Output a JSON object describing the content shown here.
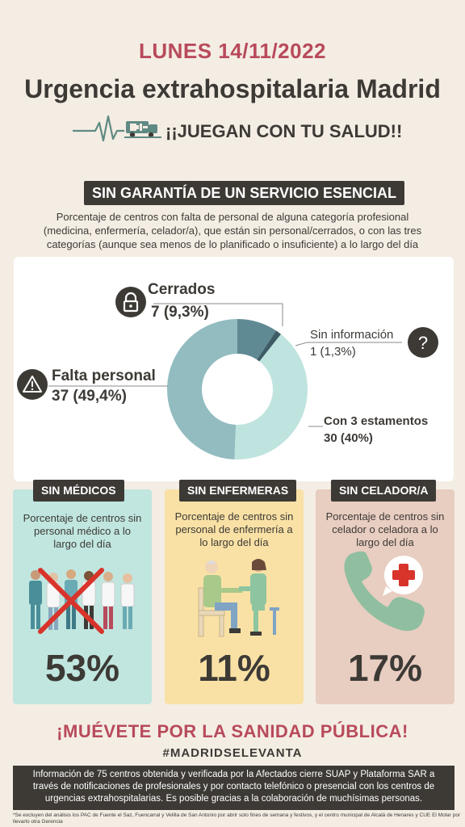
{
  "header": {
    "date": "LUNES 14/11/2022",
    "title": "Urgencia extrahospitalaria Madrid",
    "slogan": "¡¡JUEGAN CON TU SALUD!!"
  },
  "section": {
    "tag": "SIN GARANTÍA DE UN SERVICIO  ESENCIAL",
    "description": "Porcentaje de centros con falta de personal de alguna categoría profesional (medicina, enfermería, celador/a), que están sin personal/cerrados, o con las tres categorías (aunque sea menos de lo planificado o insuficiente) a lo largo del día"
  },
  "chart_data": {
    "type": "pie",
    "donut": true,
    "slices": [
      {
        "name": "Cerrados",
        "value": 7,
        "label": "7 (9,3%)",
        "percent": 9.3,
        "color": "#5f8a94"
      },
      {
        "name": "Sin información",
        "value": 1,
        "label": "1 (1,3%)",
        "percent": 1.3,
        "color": "#3d5c66"
      },
      {
        "name": "Con 3 estamentos",
        "value": 30,
        "label": "30 (40%)",
        "percent": 40,
        "color": "#bfe4df"
      },
      {
        "name": "Falta personal",
        "value": 37,
        "label": "37 (49,4%)",
        "percent": 49.4,
        "color": "#92bcc0"
      }
    ]
  },
  "cards": [
    {
      "tag": "SIN MÉDICOS",
      "description": "Porcentaje de centros sin personal médico a lo largo del día",
      "percent": "53%",
      "color": "#c0e6df",
      "icon": "doctors-crossed-icon"
    },
    {
      "tag": "SIN ENFERMERAS",
      "description": "Porcentaje de centros sin personal de enfermería a lo largo del día",
      "percent": "11%",
      "color": "#f9e1a5",
      "icon": "nurse-patient-icon"
    },
    {
      "tag": "SIN CELADOR/A",
      "description": "Porcentaje de centros sin celador o celadora a lo largo del día",
      "percent": "17%",
      "color": "#e8cdc1",
      "icon": "phone-medical-icon"
    }
  ],
  "footer": {
    "cta": "¡MUÉVETE POR LA SANIDAD PÚBLICA!",
    "hashtag": "#MADRIDSELEVANTA",
    "info": "Información de 75 centros obtenida y verificada por la Afectados cierre SUAP y Plataforma SAR a través de notificaciones de profesionales y por contacto telefónico o presencial con los centros de urgencias extrahospitalarias. Es posible gracias a la colaboración de muchísimas personas.",
    "footnote": "*Se excluyen del análisis los PAC de Fuente el Saz, Fuencarral y Velilla de San Antonio por abrir solo fines de semana y festivos, y el centro municipal de Alcalá de Henares y CUE El Molar por llevarlo otra Gerencia"
  },
  "colors": {
    "accent": "#b84a5b",
    "dark": "#3d3a36",
    "background": "#f4ede4"
  }
}
